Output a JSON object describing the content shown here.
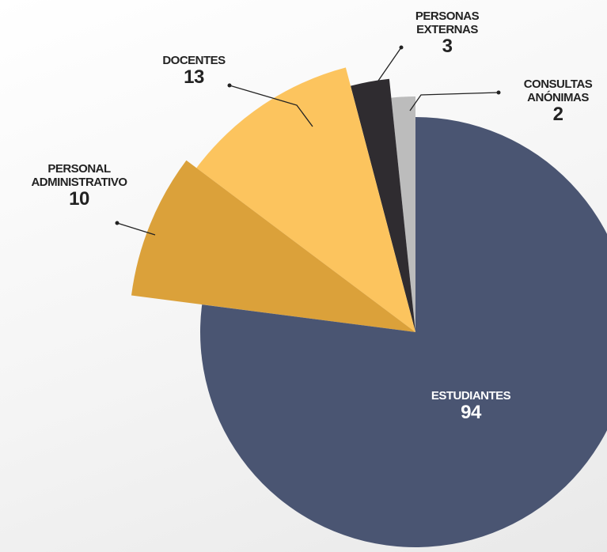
{
  "chart_data": {
    "type": "pie",
    "categories": [
      "ESTUDIANTES",
      "PERSONAL ADMINISTRATIVO",
      "DOCENTES",
      "PERSONAS EXTERNAS",
      "CONSULTAS ANÓNIMAS"
    ],
    "values": [
      94,
      10,
      13,
      3,
      2
    ],
    "colors": [
      "#4a5572",
      "#dba13a",
      "#fcc45e",
      "#2f2c30",
      "#bcbcbc"
    ]
  }
}
